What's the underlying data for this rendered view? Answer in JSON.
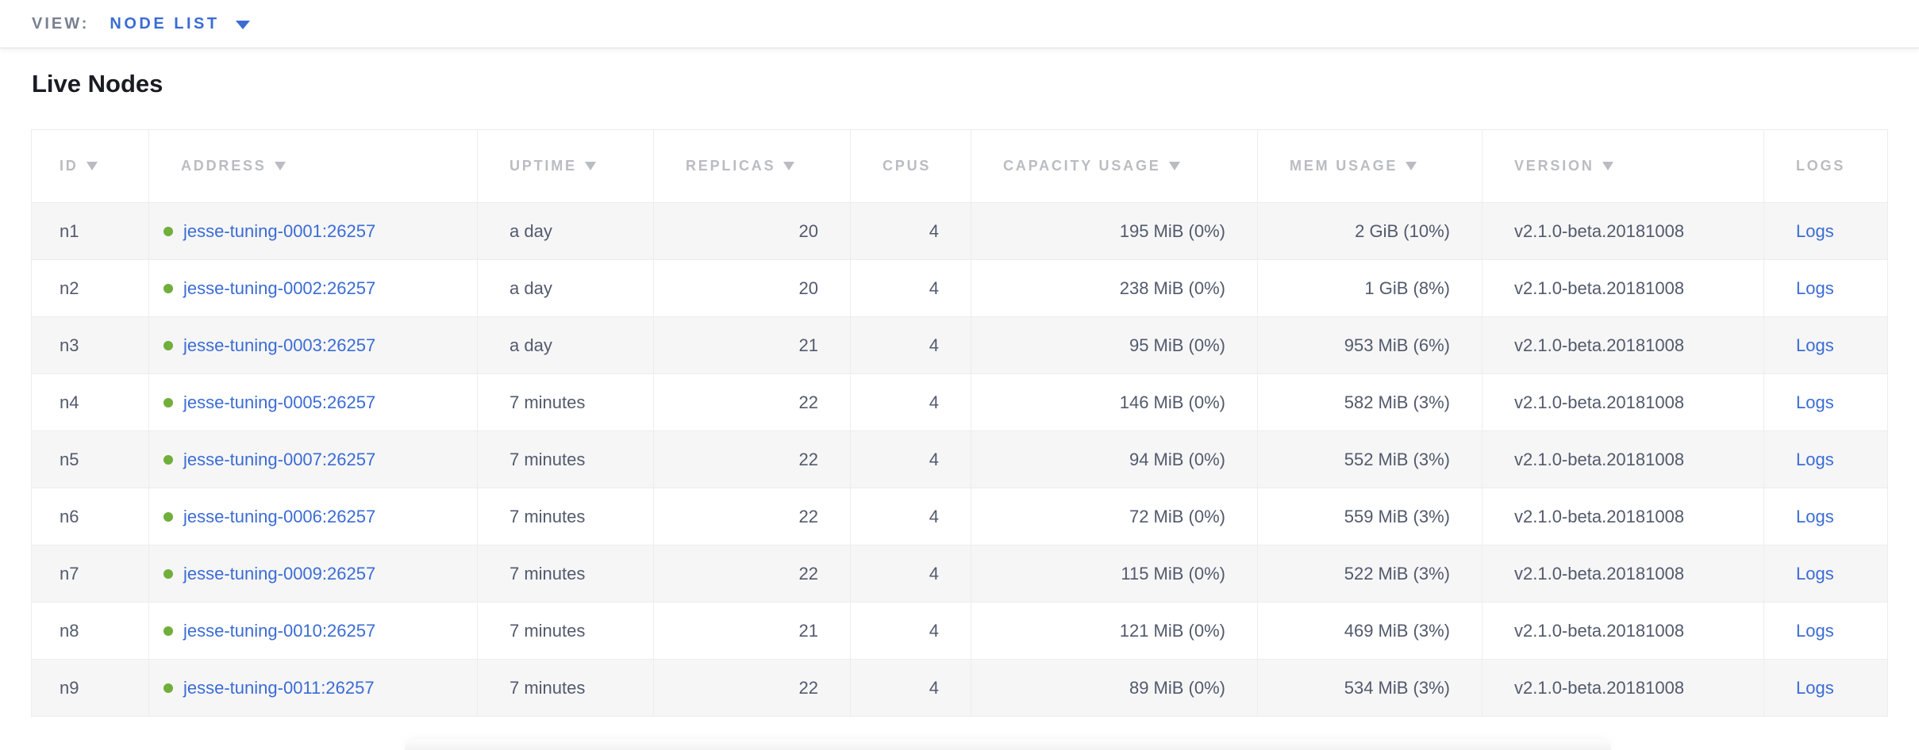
{
  "view_bar": {
    "label": "VIEW:",
    "selected": "NODE LIST"
  },
  "page": {
    "title": "Live Nodes"
  },
  "table": {
    "columns": [
      {
        "key": "id",
        "label": "ID",
        "sortable": true,
        "align": "left"
      },
      {
        "key": "address",
        "label": "ADDRESS",
        "sortable": true,
        "align": "left"
      },
      {
        "key": "uptime",
        "label": "UPTIME",
        "sortable": true,
        "align": "left"
      },
      {
        "key": "replicas",
        "label": "REPLICAS",
        "sortable": true,
        "align": "right"
      },
      {
        "key": "cpus",
        "label": "CPUS",
        "sortable": false,
        "align": "right"
      },
      {
        "key": "capacity",
        "label": "CAPACITY USAGE",
        "sortable": true,
        "align": "right"
      },
      {
        "key": "mem",
        "label": "MEM USAGE",
        "sortable": true,
        "align": "right"
      },
      {
        "key": "version",
        "label": "VERSION",
        "sortable": true,
        "align": "left"
      },
      {
        "key": "logs",
        "label": "LOGS",
        "sortable": false,
        "align": "left"
      }
    ],
    "rows": [
      {
        "id": "n1",
        "status": "live",
        "address": "jesse-tuning-0001:26257",
        "uptime": "a day",
        "replicas": "20",
        "cpus": "4",
        "capacity": "195 MiB (0%)",
        "mem": "2 GiB (10%)",
        "version": "v2.1.0-beta.20181008",
        "logs": "Logs"
      },
      {
        "id": "n2",
        "status": "live",
        "address": "jesse-tuning-0002:26257",
        "uptime": "a day",
        "replicas": "20",
        "cpus": "4",
        "capacity": "238 MiB (0%)",
        "mem": "1 GiB (8%)",
        "version": "v2.1.0-beta.20181008",
        "logs": "Logs"
      },
      {
        "id": "n3",
        "status": "live",
        "address": "jesse-tuning-0003:26257",
        "uptime": "a day",
        "replicas": "21",
        "cpus": "4",
        "capacity": "95 MiB (0%)",
        "mem": "953 MiB (6%)",
        "version": "v2.1.0-beta.20181008",
        "logs": "Logs"
      },
      {
        "id": "n4",
        "status": "live",
        "address": "jesse-tuning-0005:26257",
        "uptime": "7 minutes",
        "replicas": "22",
        "cpus": "4",
        "capacity": "146 MiB (0%)",
        "mem": "582 MiB (3%)",
        "version": "v2.1.0-beta.20181008",
        "logs": "Logs"
      },
      {
        "id": "n5",
        "status": "live",
        "address": "jesse-tuning-0007:26257",
        "uptime": "7 minutes",
        "replicas": "22",
        "cpus": "4",
        "capacity": "94 MiB (0%)",
        "mem": "552 MiB (3%)",
        "version": "v2.1.0-beta.20181008",
        "logs": "Logs"
      },
      {
        "id": "n6",
        "status": "live",
        "address": "jesse-tuning-0006:26257",
        "uptime": "7 minutes",
        "replicas": "22",
        "cpus": "4",
        "capacity": "72 MiB (0%)",
        "mem": "559 MiB (3%)",
        "version": "v2.1.0-beta.20181008",
        "logs": "Logs"
      },
      {
        "id": "n7",
        "status": "live",
        "address": "jesse-tuning-0009:26257",
        "uptime": "7 minutes",
        "replicas": "22",
        "cpus": "4",
        "capacity": "115 MiB (0%)",
        "mem": "522 MiB (3%)",
        "version": "v2.1.0-beta.20181008",
        "logs": "Logs"
      },
      {
        "id": "n8",
        "status": "live",
        "address": "jesse-tuning-0010:26257",
        "uptime": "7 minutes",
        "replicas": "21",
        "cpus": "4",
        "capacity": "121 MiB (0%)",
        "mem": "469 MiB (3%)",
        "version": "v2.1.0-beta.20181008",
        "logs": "Logs"
      },
      {
        "id": "n9",
        "status": "live",
        "address": "jesse-tuning-0011:26257",
        "uptime": "7 minutes",
        "replicas": "22",
        "cpus": "4",
        "capacity": "89 MiB (0%)",
        "mem": "534 MiB (3%)",
        "version": "v2.1.0-beta.20181008",
        "logs": "Logs"
      }
    ]
  },
  "colors": {
    "link_blue": "#3b6cd4",
    "live_green": "#71ae3c",
    "header_gray": "#b9bcc1",
    "body_text": "#525a6c"
  }
}
